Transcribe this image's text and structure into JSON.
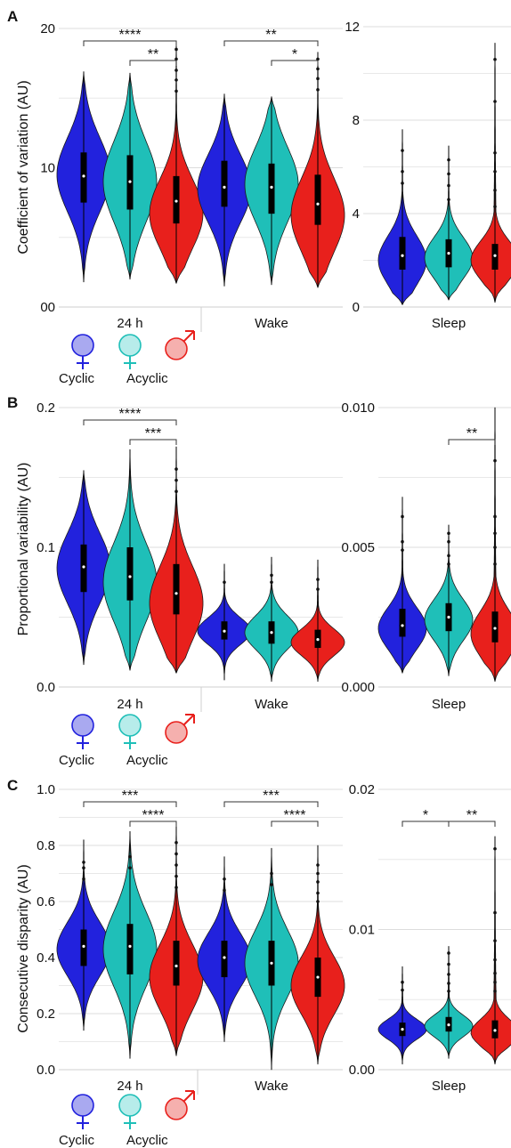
{
  "colors": {
    "cyclic": "#2222dd",
    "acyclic_female": "#1fbfb8",
    "male": "#e8201c",
    "legend_cyclic": "#a9a9f0",
    "legend_acyclic_female": "#b7ecea",
    "legend_male": "#f5b0ae"
  },
  "legend": {
    "cyclic": "Cyclic",
    "acyclic": "Acyclic"
  },
  "chart_data": [
    {
      "panel": "A",
      "type": "violin",
      "ylabel": "Coefficient of variation (AU)",
      "ylim": [
        0,
        20
      ],
      "yticks": [
        "00",
        "10",
        "20"
      ],
      "groups": [
        "24 h",
        "Wake"
      ],
      "series": [
        {
          "group": "24 h",
          "sex": "cyclic",
          "min": 1.8,
          "q1": 7.5,
          "median": 9.4,
          "q3": 11.1,
          "max": 16.9,
          "mode": 9.5,
          "outliers": []
        },
        {
          "group": "24 h",
          "sex": "acyclic_female",
          "min": 2.0,
          "q1": 7.0,
          "median": 9.0,
          "q3": 10.9,
          "max": 16.8,
          "mode": 9.0,
          "outliers": []
        },
        {
          "group": "24 h",
          "sex": "male",
          "min": 1.7,
          "q1": 6.0,
          "median": 7.6,
          "q3": 9.4,
          "max": 19.1,
          "mode": 6.7,
          "outliers": [
            15.5,
            16.3,
            17.0,
            17.8,
            18.5
          ]
        },
        {
          "group": "Wake",
          "sex": "cyclic",
          "min": 1.5,
          "q1": 7.2,
          "median": 8.6,
          "q3": 10.5,
          "max": 15.3,
          "mode": 8.5,
          "outliers": []
        },
        {
          "group": "Wake",
          "sex": "acyclic_female",
          "min": 1.6,
          "q1": 6.7,
          "median": 8.6,
          "q3": 10.3,
          "max": 15.1,
          "mode": 8.8,
          "outliers": []
        },
        {
          "group": "Wake",
          "sex": "male",
          "min": 1.4,
          "q1": 5.9,
          "median": 7.4,
          "q3": 9.5,
          "max": 18.3,
          "mode": 6.6,
          "outliers": [
            15.6,
            16.4,
            17.1,
            17.8
          ]
        }
      ],
      "brackets": [
        {
          "from": 0,
          "to": 2,
          "label": "****",
          "level": 1
        },
        {
          "from": 1,
          "to": 2,
          "label": "**",
          "level": 0
        },
        {
          "from": 3,
          "to": 5,
          "label": "**",
          "level": 1
        },
        {
          "from": 4,
          "to": 5,
          "label": "*",
          "level": 0
        }
      ]
    },
    {
      "panel": "A",
      "type": "violin",
      "ylim": [
        0,
        12
      ],
      "yticks": [
        "0",
        "4",
        "8",
        "12"
      ],
      "groups": [
        "Sleep"
      ],
      "series": [
        {
          "group": "Sleep",
          "sex": "cyclic",
          "min": 0.1,
          "q1": 1.6,
          "median": 2.2,
          "q3": 3.0,
          "max": 7.6,
          "mode": 2.0,
          "outliers": [
            5.3,
            5.8,
            6.7
          ]
        },
        {
          "group": "Sleep",
          "sex": "acyclic_female",
          "min": 0.3,
          "q1": 1.7,
          "median": 2.3,
          "q3": 2.9,
          "max": 6.9,
          "mode": 2.1,
          "outliers": [
            4.6,
            5.2,
            5.7,
            6.3
          ]
        },
        {
          "group": "Sleep",
          "sex": "male",
          "min": 0.2,
          "q1": 1.6,
          "median": 2.2,
          "q3": 2.7,
          "max": 11.3,
          "mode": 2.0,
          "outliers": [
            4.3,
            5.0,
            5.8,
            6.6,
            8.8,
            10.6
          ]
        }
      ],
      "brackets": []
    },
    {
      "panel": "B",
      "type": "violin",
      "ylabel": "Proportional variability (AU)",
      "ylim": [
        0,
        0.2
      ],
      "yticks": [
        "0.0",
        "0.1",
        "0.2"
      ],
      "groups": [
        "24 h",
        "Wake"
      ],
      "series": [
        {
          "group": "24 h",
          "sex": "cyclic",
          "min": 0.016,
          "q1": 0.068,
          "median": 0.086,
          "q3": 0.102,
          "max": 0.155,
          "mode": 0.085,
          "outliers": []
        },
        {
          "group": "24 h",
          "sex": "acyclic_female",
          "min": 0.012,
          "q1": 0.062,
          "median": 0.079,
          "q3": 0.1,
          "max": 0.17,
          "mode": 0.075,
          "outliers": []
        },
        {
          "group": "24 h",
          "sex": "male",
          "min": 0.01,
          "q1": 0.052,
          "median": 0.067,
          "q3": 0.088,
          "max": 0.172,
          "mode": 0.06,
          "outliers": [
            0.14,
            0.148,
            0.156
          ]
        },
        {
          "group": "Wake",
          "sex": "cyclic",
          "min": 0.005,
          "q1": 0.034,
          "median": 0.04,
          "q3": 0.047,
          "max": 0.088,
          "mode": 0.04,
          "outliers": [
            0.075
          ]
        },
        {
          "group": "Wake",
          "sex": "acyclic_female",
          "min": 0.004,
          "q1": 0.031,
          "median": 0.039,
          "q3": 0.047,
          "max": 0.093,
          "mode": 0.039,
          "outliers": [
            0.075,
            0.08
          ]
        },
        {
          "group": "Wake",
          "sex": "male",
          "min": 0.004,
          "q1": 0.028,
          "median": 0.034,
          "q3": 0.041,
          "max": 0.091,
          "mode": 0.032,
          "outliers": [
            0.07,
            0.077
          ]
        }
      ],
      "brackets": [
        {
          "from": 0,
          "to": 2,
          "label": "****",
          "level": 1
        },
        {
          "from": 1,
          "to": 2,
          "label": "***",
          "level": 0
        }
      ]
    },
    {
      "panel": "B",
      "type": "violin",
      "ylim": [
        0,
        0.01
      ],
      "yticks": [
        "0.000",
        "0.005",
        "0.010"
      ],
      "groups": [
        "Sleep"
      ],
      "series": [
        {
          "group": "Sleep",
          "sex": "cyclic",
          "min": 0.0005,
          "q1": 0.0018,
          "median": 0.0022,
          "q3": 0.0028,
          "max": 0.0068,
          "mode": 0.0021,
          "outliers": [
            0.0049,
            0.0052,
            0.0061
          ]
        },
        {
          "group": "Sleep",
          "sex": "acyclic_female",
          "min": 0.0004,
          "q1": 0.002,
          "median": 0.0025,
          "q3": 0.003,
          "max": 0.0058,
          "mode": 0.0024,
          "outliers": [
            0.0044,
            0.0047,
            0.0052,
            0.0055
          ]
        },
        {
          "group": "Sleep",
          "sex": "male",
          "min": 0.0002,
          "q1": 0.0016,
          "median": 0.0021,
          "q3": 0.0027,
          "max": 0.01,
          "mode": 0.0019,
          "outliers": [
            0.0044,
            0.005,
            0.0055,
            0.0061,
            0.0081
          ]
        }
      ],
      "brackets": [
        {
          "from": 1,
          "to": 2,
          "label": "**",
          "level": 0
        }
      ]
    },
    {
      "panel": "C",
      "type": "violin",
      "ylabel": "Consecutive disparity (AU)",
      "ylim": [
        0,
        1.0
      ],
      "yticks": [
        "0.0",
        "0.2",
        "0.4",
        "0.6",
        "0.8",
        "1.0"
      ],
      "groups": [
        "24 h",
        "Wake"
      ],
      "series": [
        {
          "group": "24 h",
          "sex": "cyclic",
          "min": 0.14,
          "q1": 0.37,
          "median": 0.44,
          "q3": 0.5,
          "max": 0.82,
          "mode": 0.43,
          "outliers": [
            0.68,
            0.72,
            0.74
          ]
        },
        {
          "group": "24 h",
          "sex": "acyclic_female",
          "min": 0.04,
          "q1": 0.34,
          "median": 0.44,
          "q3": 0.52,
          "max": 0.85,
          "mode": 0.43,
          "outliers": [
            0.72,
            0.76
          ]
        },
        {
          "group": "24 h",
          "sex": "male",
          "min": 0.05,
          "q1": 0.3,
          "median": 0.37,
          "q3": 0.46,
          "max": 0.88,
          "mode": 0.33,
          "outliers": [
            0.65,
            0.69,
            0.73,
            0.77,
            0.81
          ]
        },
        {
          "group": "Wake",
          "sex": "cyclic",
          "min": 0.1,
          "q1": 0.33,
          "median": 0.4,
          "q3": 0.46,
          "max": 0.76,
          "mode": 0.39,
          "outliers": [
            0.64,
            0.68
          ]
        },
        {
          "group": "Wake",
          "sex": "acyclic_female",
          "min": 0.0,
          "q1": 0.3,
          "median": 0.38,
          "q3": 0.46,
          "max": 0.79,
          "mode": 0.38,
          "outliers": [
            0.66,
            0.7
          ]
        },
        {
          "group": "Wake",
          "sex": "male",
          "min": 0.02,
          "q1": 0.26,
          "median": 0.33,
          "q3": 0.4,
          "max": 0.8,
          "mode": 0.3,
          "outliers": [
            0.6,
            0.63,
            0.67,
            0.7,
            0.73
          ]
        }
      ],
      "brackets": [
        {
          "from": 0,
          "to": 2,
          "label": "***",
          "level": 1
        },
        {
          "from": 1,
          "to": 2,
          "label": "****",
          "level": 0
        },
        {
          "from": 3,
          "to": 5,
          "label": "***",
          "level": 1
        },
        {
          "from": 4,
          "to": 5,
          "label": "****",
          "level": 0
        }
      ]
    },
    {
      "panel": "C",
      "type": "violin",
      "ylim": [
        0,
        0.025
      ],
      "yticks": [
        "0.00",
        "0.01",
        "0.02"
      ],
      "groups": [
        "Sleep"
      ],
      "series": [
        {
          "group": "Sleep",
          "sex": "cyclic",
          "min": 0.0005,
          "q1": 0.003,
          "median": 0.0036,
          "q3": 0.0042,
          "max": 0.0092,
          "mode": 0.0036,
          "outliers": [
            0.0071,
            0.0078
          ]
        },
        {
          "group": "Sleep",
          "sex": "acyclic_female",
          "min": 0.001,
          "q1": 0.0034,
          "median": 0.004,
          "q3": 0.0047,
          "max": 0.011,
          "mode": 0.0039,
          "outliers": [
            0.007,
            0.0077,
            0.0085,
            0.0094,
            0.0104
          ]
        },
        {
          "group": "Sleep",
          "sex": "male",
          "min": 0.0005,
          "q1": 0.0028,
          "median": 0.0035,
          "q3": 0.0044,
          "max": 0.0208,
          "mode": 0.0033,
          "outliers": [
            0.007,
            0.0078,
            0.0086,
            0.0098,
            0.0115,
            0.014,
            0.0197
          ]
        }
      ],
      "brackets": [
        {
          "from": 0,
          "to": 1,
          "label": "*",
          "level": 0
        },
        {
          "from": 1,
          "to": 2,
          "label": "**",
          "level": 0
        }
      ]
    }
  ]
}
